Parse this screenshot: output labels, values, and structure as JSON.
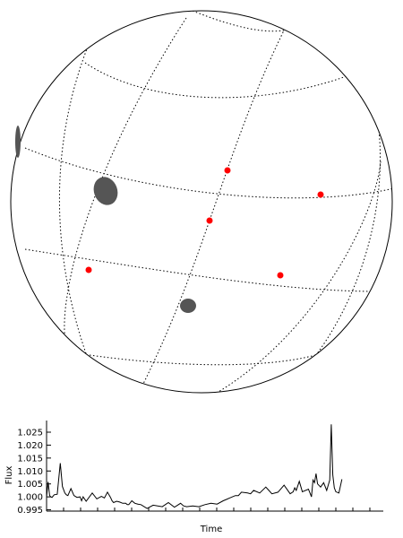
{
  "sphere": {
    "spots": [
      {
        "name": "spot-limb-left",
        "color": "#555555"
      },
      {
        "name": "spot-large",
        "color": "#555555"
      },
      {
        "name": "spot-small",
        "color": "#555555"
      }
    ],
    "markers": [
      {
        "name": "red-marker-1",
        "color": "#ff0000"
      },
      {
        "name": "red-marker-2",
        "color": "#ff0000"
      },
      {
        "name": "red-marker-3",
        "color": "#ff0000"
      },
      {
        "name": "red-marker-4",
        "color": "#ff0000"
      },
      {
        "name": "red-marker-5",
        "color": "#ff0000"
      }
    ],
    "grid_style": "dotted"
  },
  "chart_data": {
    "type": "line",
    "xlabel": "Time",
    "ylabel": "Flux",
    "ylim": [
      0.9945,
      1.0295
    ],
    "xlim": [
      0,
      1
    ],
    "yticks": [
      "0.995",
      "1.000",
      "1.005",
      "1.010",
      "1.015",
      "1.020",
      "1.025"
    ],
    "x": [
      0.0,
      0.005,
      0.01,
      0.014,
      0.018,
      0.025,
      0.035,
      0.045,
      0.052,
      0.06,
      0.065,
      0.07,
      0.08,
      0.09,
      0.1,
      0.11,
      0.115,
      0.12,
      0.13,
      0.15,
      0.165,
      0.18,
      0.19,
      0.2,
      0.21,
      0.215,
      0.22,
      0.23,
      0.24,
      0.25,
      0.26,
      0.265,
      0.27,
      0.28,
      0.29,
      0.3,
      0.31,
      0.33,
      0.35,
      0.38,
      0.4,
      0.42,
      0.44,
      0.45,
      0.46,
      0.48,
      0.5,
      0.52,
      0.54,
      0.56,
      0.58,
      0.6,
      0.62,
      0.63,
      0.64,
      0.66,
      0.67,
      0.68,
      0.7,
      0.72,
      0.73,
      0.74,
      0.76,
      0.78,
      0.8,
      0.81,
      0.815,
      0.82,
      0.83,
      0.84,
      0.86,
      0.87,
      0.875,
      0.88,
      0.885,
      0.89,
      0.9,
      0.91,
      0.92,
      0.925,
      0.93,
      0.935,
      0.94,
      0.945,
      0.95,
      0.96,
      0.97
    ],
    "y": [
      1.0,
      1.0058,
      1.0005,
      1.0,
      0.9998,
      1.0008,
      1.001,
      1.013,
      1.004,
      1.0015,
      1.0008,
      1.0005,
      1.0032,
      1.0005,
      0.9998,
      1.0,
      0.9985,
      1.0,
      0.9983,
      1.0015,
      0.9992,
      1.0002,
      0.9996,
      1.0018,
      0.9998,
      0.9985,
      0.9978,
      0.9983,
      0.998,
      0.9975,
      0.9975,
      0.997,
      0.997,
      0.9985,
      0.9975,
      0.9972,
      0.997,
      0.9955,
      0.9968,
      0.9962,
      0.9978,
      0.996,
      0.9975,
      0.9965,
      0.9962,
      0.9965,
      0.9962,
      0.997,
      0.9975,
      0.9972,
      0.9985,
      0.9995,
      1.0005,
      1.0005,
      1.0018,
      1.0015,
      1.0012,
      1.0025,
      1.0015,
      1.0038,
      1.0025,
      1.0012,
      1.0018,
      1.0045,
      1.0012,
      1.002,
      1.0035,
      1.0025,
      1.006,
      1.002,
      1.003,
      1.0,
      1.0065,
      1.0055,
      1.009,
      1.005,
      1.0038,
      1.0055,
      1.0025,
      1.0045,
      1.0065,
      1.028,
      1.0085,
      1.0035,
      1.002,
      1.0015,
      1.0068
    ]
  }
}
